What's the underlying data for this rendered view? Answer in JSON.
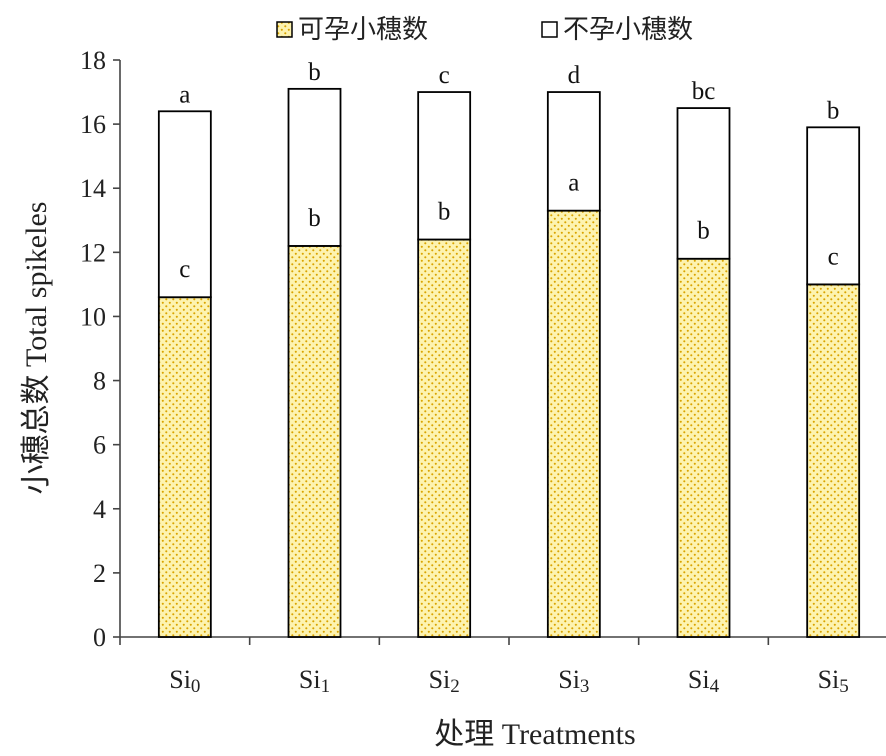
{
  "chart_data": {
    "type": "bar",
    "stacked": true,
    "categories": [
      "Si0",
      "Si1",
      "Si2",
      "Si3",
      "Si4",
      "Si5"
    ],
    "category_labels": [
      {
        "base": "Si",
        "sub": "0"
      },
      {
        "base": "Si",
        "sub": "1"
      },
      {
        "base": "Si",
        "sub": "2"
      },
      {
        "base": "Si",
        "sub": "3"
      },
      {
        "base": "Si",
        "sub": "4"
      },
      {
        "base": "Si",
        "sub": "5"
      }
    ],
    "series": [
      {
        "name": "可孕小穗数",
        "values": [
          10.6,
          12.2,
          12.4,
          13.3,
          11.8,
          11.0
        ],
        "letters": [
          "c",
          "b",
          "b",
          "a",
          "b",
          "c"
        ],
        "fill": "dotted-yellow"
      },
      {
        "name": "不孕小穗数",
        "values": [
          5.8,
          4.9,
          4.6,
          3.7,
          4.7,
          4.9
        ],
        "letters": [
          "a",
          "b",
          "c",
          "d",
          "bc",
          "b"
        ],
        "fill": "white"
      }
    ],
    "xlabel": "处理 Treatments",
    "ylabel": "小穗总数 Total spikeles",
    "ylim": [
      0,
      18
    ],
    "yticks": [
      "0",
      "2",
      "4",
      "6",
      "8",
      "10",
      "12",
      "14",
      "16",
      "18"
    ],
    "grid": false,
    "legend_position": "top"
  },
  "colors": {
    "fertile_fill": "#fdf3b0",
    "fertile_dots": "#d9a400",
    "sterile_fill": "#ffffff",
    "bar_stroke": "#000000",
    "axis": "#444444"
  }
}
